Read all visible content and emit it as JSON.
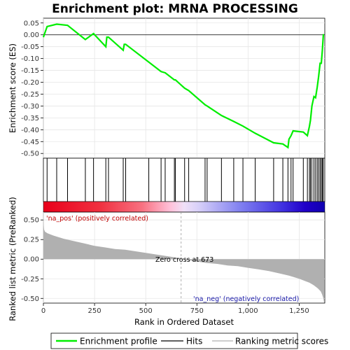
{
  "chart_data": [
    {
      "type": "line",
      "title": "Enrichment plot: MRNA PROCESSING",
      "ylabel": "Enrichment score (ES)",
      "xlim": [
        0,
        1375
      ],
      "ylim": [
        -0.52,
        0.07
      ],
      "yticks": [
        0.05,
        0.0,
        -0.05,
        -0.1,
        -0.15,
        -0.2,
        -0.25,
        -0.3,
        -0.35,
        -0.4,
        -0.45,
        -0.5
      ],
      "ytick_labels": [
        "0.05",
        "0.00",
        "-0.05",
        "-0.10",
        "-0.15",
        "-0.20",
        "-0.25",
        "-0.30",
        "-0.35",
        "-0.40",
        "-0.45",
        "-0.50"
      ],
      "grid": true,
      "color": "#00ff00",
      "series": [
        {
          "name": "Enrichment profile",
          "x": [
            0,
            18,
            65,
            118,
            205,
            245,
            305,
            310,
            318,
            390,
            395,
            402,
            515,
            575,
            595,
            640,
            645,
            690,
            710,
            790,
            800,
            870,
            930,
            975,
            1035,
            1125,
            1170,
            1195,
            1200,
            1210,
            1220,
            1270,
            1290,
            1300,
            1305,
            1312,
            1322,
            1330,
            1338,
            1345,
            1352,
            1358,
            1363,
            1368
          ],
          "y": [
            -0.01,
            0.035,
            0.045,
            0.04,
            -0.02,
            0.005,
            -0.05,
            -0.01,
            -0.01,
            -0.065,
            -0.04,
            -0.04,
            -0.115,
            -0.155,
            -0.16,
            -0.19,
            -0.19,
            -0.225,
            -0.235,
            -0.295,
            -0.3,
            -0.34,
            -0.365,
            -0.385,
            -0.415,
            -0.455,
            -0.46,
            -0.475,
            -0.44,
            -0.425,
            -0.405,
            -0.41,
            -0.425,
            -0.385,
            -0.36,
            -0.3,
            -0.26,
            -0.265,
            -0.22,
            -0.175,
            -0.12,
            -0.12,
            -0.065,
            0.003
          ]
        }
      ]
    },
    {
      "type": "hits",
      "series_name": "Hits",
      "hits": [
        18,
        65,
        118,
        205,
        245,
        305,
        318,
        390,
        402,
        515,
        575,
        595,
        640,
        645,
        690,
        710,
        790,
        800,
        870,
        930,
        975,
        1035,
        1125,
        1170,
        1195,
        1210,
        1220,
        1270,
        1290,
        1300,
        1305,
        1312,
        1322,
        1330,
        1338,
        1345,
        1352,
        1358,
        1363,
        1368
      ]
    },
    {
      "type": "area",
      "series_name": "Ranking metric scores",
      "ylabel": "Ranked list metric (PreRanked)",
      "xlabel": "Rank in Ordered Dataset",
      "xlim": [
        0,
        1375
      ],
      "ylim": [
        -0.56,
        0.6
      ],
      "xticks": [
        0,
        250,
        500,
        750,
        1000,
        1250
      ],
      "yticks": [
        0.5,
        0.25,
        0.0,
        -0.25,
        -0.5
      ],
      "ytick_labels": [
        "0.50",
        "0.25",
        "0.00",
        "-0.25",
        "-0.50"
      ],
      "x": [
        0,
        3,
        8,
        20,
        50,
        100,
        150,
        200,
        250,
        300,
        350,
        400,
        450,
        500,
        550,
        600,
        650,
        673,
        700,
        750,
        800,
        850,
        900,
        950,
        1000,
        1050,
        1100,
        1150,
        1200,
        1250,
        1280,
        1300,
        1320,
        1340,
        1355,
        1362,
        1368,
        1372
      ],
      "values": [
        0.5,
        0.38,
        0.35,
        0.33,
        0.3,
        0.26,
        0.23,
        0.2,
        0.17,
        0.15,
        0.13,
        0.12,
        0.1,
        0.08,
        0.06,
        0.04,
        0.02,
        0.0,
        -0.01,
        -0.03,
        -0.05,
        -0.06,
        -0.08,
        -0.09,
        -0.11,
        -0.13,
        -0.15,
        -0.18,
        -0.21,
        -0.25,
        -0.28,
        -0.3,
        -0.33,
        -0.37,
        -0.41,
        -0.45,
        -0.5,
        -0.56
      ],
      "color": "#b0b0b0",
      "annotations": {
        "pos_label": "'na_pos' (positively correlated)",
        "neg_label": "'na_neg' (negatively correlated)",
        "zero_cross": "Zero cross at 673",
        "zero_cross_x": 673
      }
    }
  ],
  "legend": {
    "items": [
      {
        "label": "Enrichment profile",
        "color": "#00ff00"
      },
      {
        "label": "Hits",
        "color": "#000000"
      },
      {
        "label": "Ranking metric scores",
        "color": "#b0b0b0"
      }
    ]
  }
}
